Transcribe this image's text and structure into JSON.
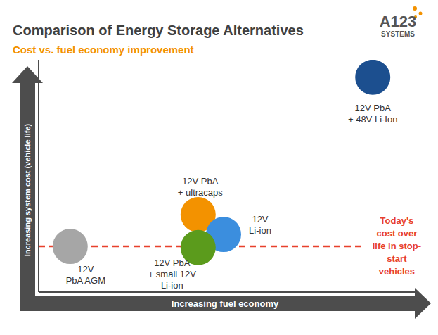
{
  "logo": "A123\nSYSTEMS",
  "chart_data": {
    "type": "scatter",
    "title": "Comparison of Energy Storage Alternatives",
    "subtitle": "Cost vs. fuel economy improvement",
    "x_label": "Increasing fuel economy",
    "y_label": "Increasing system cost (vehicle life)",
    "xlim": [
      0,
      10
    ],
    "ylim": [
      0,
      6
    ],
    "yticks": [
      1,
      2,
      3,
      4,
      5
    ],
    "tick_labels": false,
    "grid": true,
    "series": [
      {
        "name": "12V\nPbA AGM",
        "color": "#a6a6a6",
        "x": [
          0.83
        ],
        "values": [
          1.18
        ]
      },
      {
        "name": "12V PbA\n+ ultracaps",
        "color": "#f39200",
        "x": [
          4.2
        ],
        "values": [
          2.0
        ]
      },
      {
        "name": "12V\nLi-ion",
        "color": "#3b8ede",
        "x": [
          4.87
        ],
        "values": [
          1.49
        ]
      },
      {
        "name": "12V PbA\n+ small 12V\nLi-ion",
        "color": "#5b9b1c",
        "x": [
          4.2
        ],
        "values": [
          1.15
        ]
      },
      {
        "name": "12V PbA\n+ 48V Li-Ion",
        "color": "#1c4f8f",
        "x": [
          8.8
        ],
        "values": [
          5.55
        ]
      }
    ],
    "reference_line": {
      "y": 1.18,
      "x": [
        0,
        8.6
      ],
      "label": "Today's\ncost over\nlife in stop-\nstart\nvehicles",
      "color": "#e8412c",
      "line_style": "dashed"
    }
  }
}
